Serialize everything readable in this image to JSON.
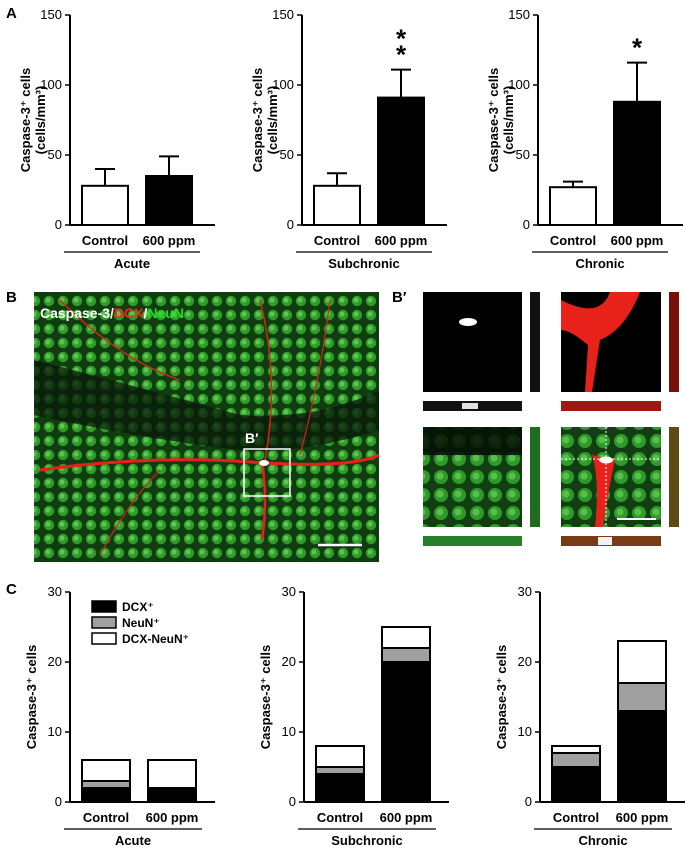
{
  "panel_labels": {
    "a": "A",
    "b": "B",
    "bprime": "B′",
    "c": "C"
  },
  "chart_data": [
    {
      "type": "bar",
      "panel": "A",
      "group": "Acute",
      "categories": [
        "Control",
        "600 ppm"
      ],
      "values": [
        28,
        35
      ],
      "errors": [
        12,
        14
      ],
      "ylim": [
        0,
        150
      ],
      "yticks": [
        0,
        50,
        100,
        150
      ],
      "ylabel": "Caspase-3⁺ cells",
      "ylabel2": "(cells/mm³)",
      "significance": [
        "",
        ""
      ]
    },
    {
      "type": "bar",
      "panel": "A",
      "group": "Subchronic",
      "categories": [
        "Control",
        "600 ppm"
      ],
      "values": [
        28,
        91
      ],
      "errors": [
        9,
        20
      ],
      "ylim": [
        0,
        150
      ],
      "yticks": [
        0,
        50,
        100,
        150
      ],
      "ylabel": "Caspase-3⁺ cells",
      "ylabel2": "(cells/mm³)",
      "significance": [
        "",
        "**"
      ]
    },
    {
      "type": "bar",
      "panel": "A",
      "group": "Chronic",
      "categories": [
        "Control",
        "600 ppm"
      ],
      "values": [
        27,
        88
      ],
      "errors": [
        4,
        28
      ],
      "ylim": [
        0,
        150
      ],
      "yticks": [
        0,
        50,
        100,
        150
      ],
      "ylabel": "Caspase-3⁺ cells",
      "ylabel2": "(cells/mm³)",
      "significance": [
        "",
        "*"
      ]
    },
    {
      "type": "bar",
      "stacked": true,
      "panel": "C",
      "group": "Acute",
      "categories": [
        "Control",
        "600 ppm"
      ],
      "series": [
        {
          "name": "DCX⁺",
          "values": [
            2,
            2
          ],
          "color": "#000000"
        },
        {
          "name": "NeuN⁺",
          "values": [
            1,
            0
          ],
          "color": "#a0a0a0"
        },
        {
          "name": "DCX-NeuN⁺",
          "values": [
            3,
            4
          ],
          "color": "#ffffff"
        }
      ],
      "ylim": [
        0,
        30
      ],
      "yticks": [
        0,
        10,
        20,
        30
      ],
      "ylabel": "Caspase-3⁺ cells",
      "legend": "top-left"
    },
    {
      "type": "bar",
      "stacked": true,
      "panel": "C",
      "group": "Subchronic",
      "categories": [
        "Control",
        "600 ppm"
      ],
      "series": [
        {
          "name": "DCX⁺",
          "values": [
            4,
            20
          ],
          "color": "#000000"
        },
        {
          "name": "NeuN⁺",
          "values": [
            1,
            2
          ],
          "color": "#a0a0a0"
        },
        {
          "name": "DCX-NeuN⁺",
          "values": [
            3,
            3
          ],
          "color": "#ffffff"
        }
      ],
      "ylim": [
        0,
        30
      ],
      "yticks": [
        0,
        10,
        20,
        30
      ],
      "ylabel": "Caspase-3⁺ cells"
    },
    {
      "type": "bar",
      "stacked": true,
      "panel": "C",
      "group": "Chronic",
      "categories": [
        "Control",
        "600 ppm"
      ],
      "series": [
        {
          "name": "DCX⁺",
          "values": [
            5,
            13
          ],
          "color": "#000000"
        },
        {
          "name": "NeuN⁺",
          "values": [
            2,
            4
          ],
          "color": "#a0a0a0"
        },
        {
          "name": "DCX-NeuN⁺",
          "values": [
            1,
            6
          ],
          "color": "#ffffff"
        }
      ],
      "ylim": [
        0,
        30
      ],
      "yticks": [
        0,
        10,
        20,
        30
      ],
      "ylabel": "Caspase-3⁺ cells"
    }
  ],
  "micrograph": {
    "label_parts": [
      "Caspase-3",
      "/",
      "DCX",
      "/",
      "NeuN"
    ],
    "label_colors": [
      "#ffffff",
      "#ffffff",
      "#ff2020",
      "#ffffff",
      "#22dd22"
    ],
    "inset_label": "B′"
  }
}
